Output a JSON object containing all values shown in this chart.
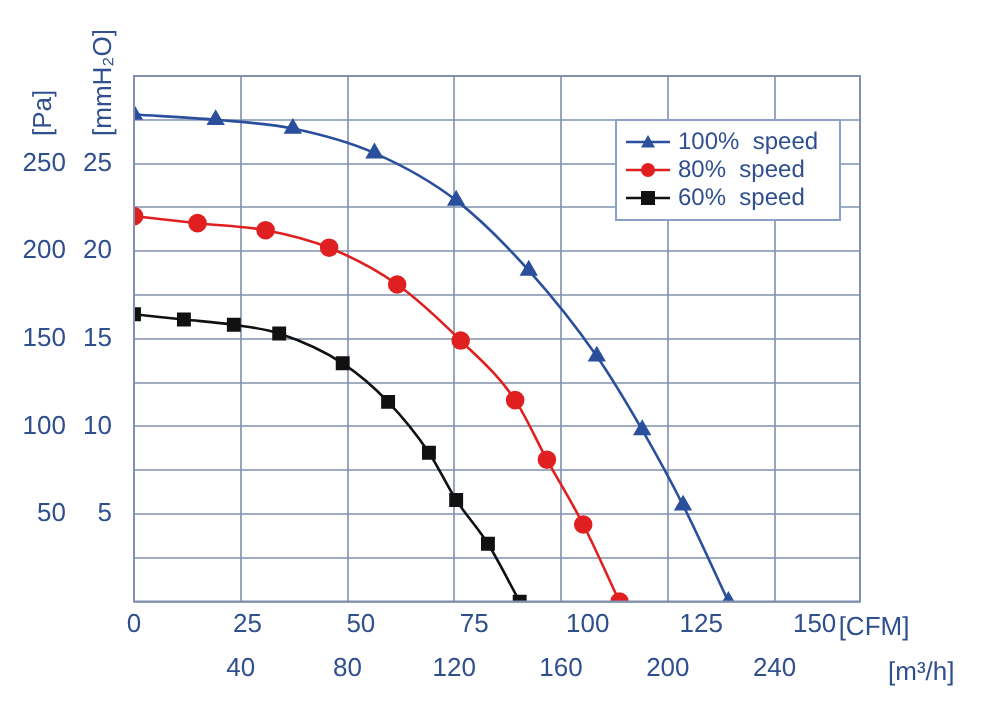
{
  "chart_data": {
    "type": "line",
    "xlabel": "[CFM]",
    "x2label": "[m³/h]",
    "ylabel": "[Pa]",
    "y2label": "[mmH₂O]",
    "xlim": [
      0,
      160
    ],
    "xticks": [
      0,
      25,
      50,
      75,
      100,
      125,
      150
    ],
    "x2lim": [
      0,
      272
    ],
    "x2ticks": [
      40,
      80,
      120,
      160,
      200,
      240
    ],
    "ylim": [
      0,
      300
    ],
    "yticks": [
      {
        "value": 0,
        "label": null
      },
      {
        "value": 25,
        "label": null
      },
      50,
      {
        "value": 75,
        "label": null
      },
      100,
      {
        "value": 125,
        "label": null
      },
      150,
      {
        "value": 175,
        "label": null
      },
      200,
      {
        "value": 225,
        "label": null
      },
      250,
      {
        "value": 275,
        "label": null
      },
      {
        "value": 300,
        "label": null
      }
    ],
    "y2lim": [
      0,
      30
    ],
    "y2ticks": [
      5,
      10,
      15,
      20,
      25
    ],
    "grid": true,
    "legend": "top right",
    "line_style": "solid",
    "series": [
      {
        "name": "100%  speed",
        "color": "#2a4f9c",
        "marker": "triangle",
        "x": [
          0,
          18,
          35,
          53,
          71,
          87,
          102,
          112,
          121,
          131
        ],
        "values": [
          278,
          275,
          270,
          256,
          229,
          189,
          140,
          98,
          55,
          0
        ]
      },
      {
        "name": "80%  speed",
        "color": "#e02020",
        "marker": "circle",
        "x": [
          0,
          14,
          29,
          43,
          58,
          72,
          84,
          91,
          99,
          107
        ],
        "values": [
          220,
          216,
          212,
          202,
          181,
          149,
          115,
          81,
          44,
          0
        ]
      },
      {
        "name": "60%  speed",
        "color": "#111111",
        "marker": "square",
        "x": [
          0,
          11,
          22,
          32,
          46,
          56,
          65,
          71,
          78,
          85
        ],
        "values": [
          164,
          161,
          158,
          153,
          136,
          114,
          85,
          58,
          33,
          0
        ]
      }
    ]
  }
}
